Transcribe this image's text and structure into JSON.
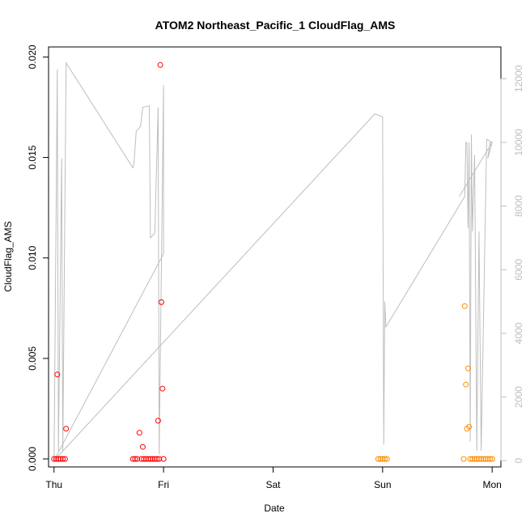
{
  "chart_data": {
    "type": "scatter",
    "title": "ATOM2 Northeast_Pacific_1 CloudFlag_AMS",
    "xlabel": "Date",
    "ylabel": "CloudFlag_AMS",
    "x_ticks": [
      "Thu",
      "Fri",
      "Sat",
      "Sun",
      "Mon"
    ],
    "xlim": [
      -0.05,
      4.08
    ],
    "y_ticks": [
      "0.000",
      "0.005",
      "0.010",
      "0.015",
      "0.020"
    ],
    "y_tick_values": [
      0,
      0.005,
      0.01,
      0.015,
      0.02
    ],
    "ylim": [
      -0.0004,
      0.0205
    ],
    "y2_ticks": [
      "0",
      "2000",
      "4000",
      "6000",
      "8000",
      "10000",
      "12000"
    ],
    "y2_tick_values": [
      0,
      2000,
      4000,
      6000,
      8000,
      10000,
      12000
    ],
    "y2lim": [
      -200,
      13000
    ],
    "grid": false,
    "series": [
      {
        "color": "#ff0000",
        "marker": "open-circle",
        "points": [
          [
            0.0,
            0.0
          ],
          [
            0.02,
            0.0
          ],
          [
            0.03,
            0.0042
          ],
          [
            0.04,
            0.0
          ],
          [
            0.06,
            0.0
          ],
          [
            0.08,
            0.0
          ],
          [
            0.1,
            0.0
          ],
          [
            0.11,
            0.0015
          ],
          [
            0.72,
            0.0
          ],
          [
            0.74,
            0.0
          ],
          [
            0.76,
            0.0
          ],
          [
            0.78,
            0.0013
          ],
          [
            0.8,
            0.0
          ],
          [
            0.81,
            0.0006
          ],
          [
            0.82,
            0.0
          ],
          [
            0.84,
            0.0
          ],
          [
            0.86,
            0.0
          ],
          [
            0.88,
            0.0
          ],
          [
            0.9,
            0.0
          ],
          [
            0.92,
            0.0
          ],
          [
            0.94,
            0.0
          ],
          [
            0.95,
            0.0019
          ],
          [
            0.96,
            0.0
          ],
          [
            0.97,
            0.0196
          ],
          [
            0.98,
            0.0078
          ],
          [
            0.99,
            0.0035
          ],
          [
            1.0,
            0.0
          ]
        ]
      },
      {
        "color": "#ff8c00",
        "marker": "open-circle",
        "points": [
          [
            2.96,
            0.0
          ],
          [
            2.98,
            0.0
          ],
          [
            3.0,
            0.0
          ],
          [
            3.02,
            0.0
          ],
          [
            3.04,
            0.0
          ],
          [
            3.74,
            0.0
          ],
          [
            3.75,
            0.0076
          ],
          [
            3.76,
            0.0037
          ],
          [
            3.77,
            0.0015
          ],
          [
            3.78,
            0.0045
          ],
          [
            3.79,
            0.0016
          ],
          [
            3.8,
            0.0
          ],
          [
            3.82,
            0.0
          ],
          [
            3.84,
            0.0
          ],
          [
            3.86,
            0.0
          ],
          [
            3.88,
            0.0
          ],
          [
            3.9,
            0.0
          ],
          [
            3.92,
            0.0
          ],
          [
            3.94,
            0.0
          ],
          [
            3.96,
            0.0
          ],
          [
            3.98,
            0.0
          ],
          [
            4.0,
            0.0
          ]
        ]
      },
      {
        "color": "#bebebe",
        "axis": "right",
        "type": "line",
        "points": [
          [
            0.0,
            0
          ],
          [
            0.03,
            12300
          ],
          [
            0.04,
            300
          ],
          [
            0.07,
            9500
          ],
          [
            0.08,
            300
          ],
          [
            0.11,
            12500
          ],
          [
            0.72,
            9200
          ],
          [
            0.73,
            9350
          ],
          [
            0.75,
            10350
          ],
          [
            0.79,
            10500
          ],
          [
            0.81,
            11100
          ],
          [
            0.87,
            11150
          ],
          [
            0.88,
            7000
          ],
          [
            0.92,
            7150
          ],
          [
            0.95,
            11100
          ],
          [
            0.96,
            200
          ],
          [
            1.0,
            11800
          ],
          [
            1.0,
            6500
          ],
          [
            0.0,
            0
          ],
          [
            2.93,
            10900
          ],
          [
            3.0,
            10800
          ],
          [
            3.01,
            500
          ],
          [
            3.02,
            5000
          ],
          [
            3.03,
            4200
          ],
          [
            3.75,
            8300
          ],
          [
            3.76,
            10000
          ],
          [
            3.77,
            9980
          ],
          [
            3.78,
            7300
          ],
          [
            3.79,
            10000
          ],
          [
            3.8,
            600
          ],
          [
            3.81,
            10250
          ],
          [
            3.82,
            7200
          ],
          [
            3.84,
            9600
          ],
          [
            3.86,
            300
          ],
          [
            3.88,
            7200
          ],
          [
            3.9,
            300
          ],
          [
            3.95,
            10100
          ],
          [
            4.0,
            10000
          ],
          [
            3.96,
            9500
          ],
          [
            3.98,
            10000
          ],
          [
            4.0,
            10000
          ],
          [
            3.7,
            8300
          ]
        ]
      }
    ]
  }
}
